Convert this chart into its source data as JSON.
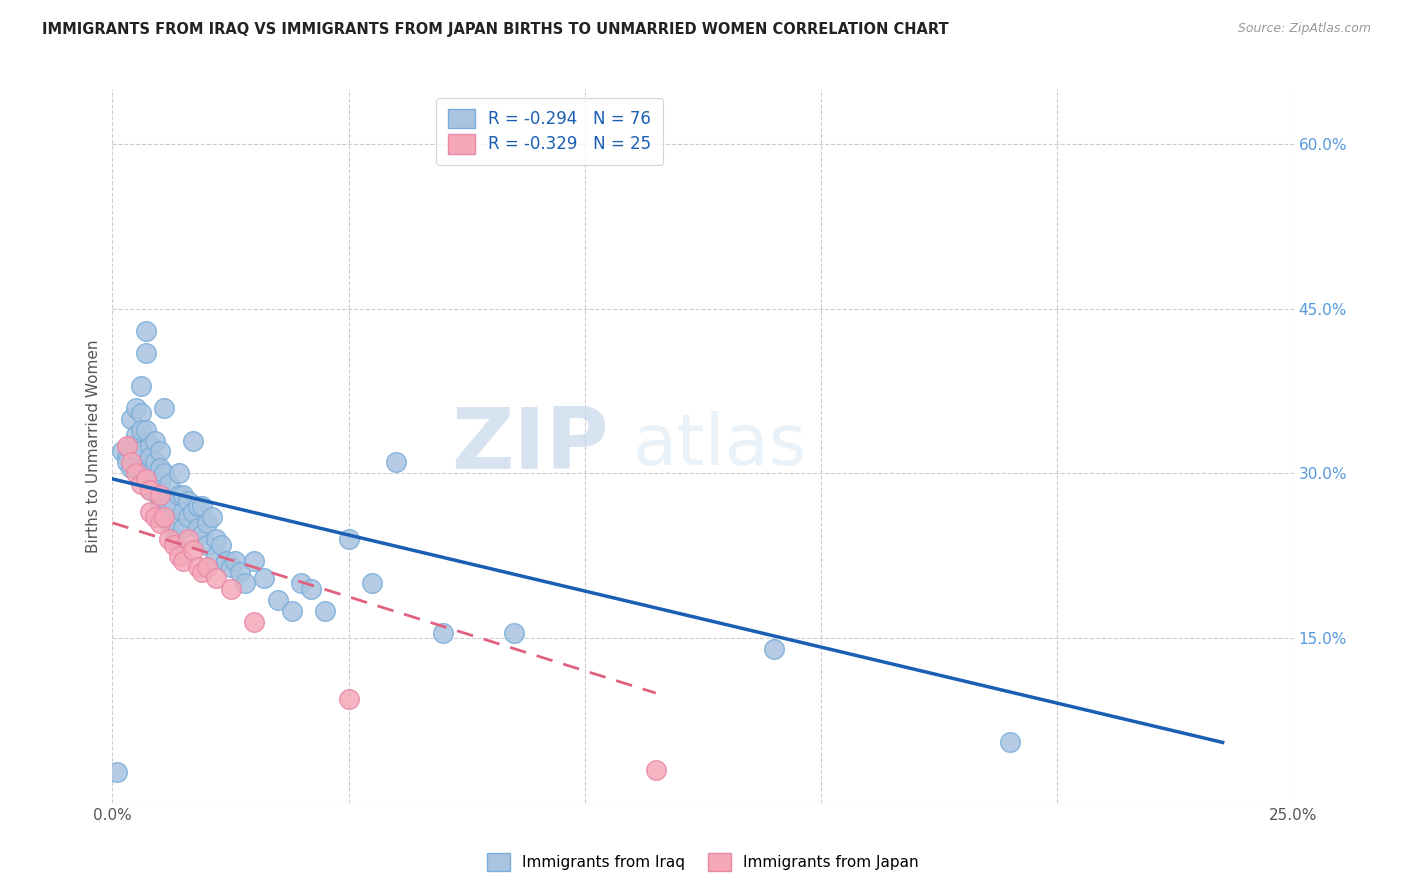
{
  "title": "IMMIGRANTS FROM IRAQ VS IMMIGRANTS FROM JAPAN BIRTHS TO UNMARRIED WOMEN CORRELATION CHART",
  "source": "Source: ZipAtlas.com",
  "ylabel": "Births to Unmarried Women",
  "xlim": [
    0.0,
    0.25
  ],
  "ylim": [
    0.0,
    0.65
  ],
  "x_ticks": [
    0.0,
    0.05,
    0.1,
    0.15,
    0.2,
    0.25
  ],
  "x_tick_labels": [
    "0.0%",
    "",
    "",
    "",
    "",
    "25.0%"
  ],
  "y_ticks_right": [
    0.0,
    0.15,
    0.3,
    0.45,
    0.6
  ],
  "y_tick_labels_right": [
    "",
    "15.0%",
    "30.0%",
    "45.0%",
    "60.0%"
  ],
  "legend_iraq": "R = -0.294   N = 76",
  "legend_japan": "R = -0.329   N = 25",
  "legend_label_iraq": "Immigrants from Iraq",
  "legend_label_japan": "Immigrants from Japan",
  "iraq_color": "#a8c4e0",
  "japan_color": "#f4a8b8",
  "iraq_line_color": "#1a5fb4",
  "japan_line_color": "#e06080",
  "background_color": "#ffffff",
  "grid_color": "#cccccc",
  "watermark_zip": "ZIP",
  "watermark_atlas": "atlas",
  "iraq_line_x0": 0.0,
  "iraq_line_y0": 0.295,
  "iraq_line_x1": 0.235,
  "iraq_line_y1": 0.055,
  "japan_line_x0": 0.0,
  "japan_line_y0": 0.255,
  "japan_line_x1": 0.115,
  "japan_line_y1": 0.1,
  "iraq_x": [
    0.001,
    0.002,
    0.003,
    0.003,
    0.004,
    0.004,
    0.004,
    0.005,
    0.005,
    0.005,
    0.005,
    0.006,
    0.006,
    0.006,
    0.006,
    0.007,
    0.007,
    0.007,
    0.008,
    0.008,
    0.008,
    0.008,
    0.009,
    0.009,
    0.009,
    0.01,
    0.01,
    0.01,
    0.01,
    0.011,
    0.011,
    0.011,
    0.012,
    0.012,
    0.012,
    0.013,
    0.013,
    0.013,
    0.014,
    0.014,
    0.015,
    0.015,
    0.015,
    0.016,
    0.016,
    0.017,
    0.017,
    0.018,
    0.018,
    0.019,
    0.019,
    0.02,
    0.02,
    0.021,
    0.022,
    0.022,
    0.023,
    0.024,
    0.025,
    0.026,
    0.027,
    0.028,
    0.03,
    0.032,
    0.035,
    0.038,
    0.04,
    0.042,
    0.045,
    0.05,
    0.055,
    0.06,
    0.07,
    0.085,
    0.14,
    0.19
  ],
  "iraq_y": [
    0.028,
    0.32,
    0.315,
    0.31,
    0.35,
    0.325,
    0.305,
    0.36,
    0.335,
    0.32,
    0.305,
    0.38,
    0.355,
    0.34,
    0.32,
    0.43,
    0.41,
    0.34,
    0.325,
    0.315,
    0.3,
    0.285,
    0.33,
    0.31,
    0.285,
    0.32,
    0.305,
    0.29,
    0.275,
    0.36,
    0.3,
    0.275,
    0.29,
    0.27,
    0.255,
    0.27,
    0.255,
    0.24,
    0.3,
    0.28,
    0.28,
    0.265,
    0.25,
    0.275,
    0.26,
    0.33,
    0.265,
    0.27,
    0.25,
    0.27,
    0.245,
    0.255,
    0.235,
    0.26,
    0.24,
    0.225,
    0.235,
    0.22,
    0.215,
    0.22,
    0.21,
    0.2,
    0.22,
    0.205,
    0.185,
    0.175,
    0.2,
    0.195,
    0.175,
    0.24,
    0.2,
    0.31,
    0.155,
    0.155,
    0.14,
    0.055
  ],
  "japan_x": [
    0.003,
    0.004,
    0.005,
    0.006,
    0.007,
    0.008,
    0.008,
    0.009,
    0.01,
    0.01,
    0.011,
    0.012,
    0.013,
    0.014,
    0.015,
    0.016,
    0.017,
    0.018,
    0.019,
    0.02,
    0.022,
    0.025,
    0.03,
    0.05,
    0.115
  ],
  "japan_y": [
    0.325,
    0.31,
    0.3,
    0.29,
    0.295,
    0.285,
    0.265,
    0.26,
    0.28,
    0.255,
    0.26,
    0.24,
    0.235,
    0.225,
    0.22,
    0.24,
    0.23,
    0.215,
    0.21,
    0.215,
    0.205,
    0.195,
    0.165,
    0.095,
    0.03
  ]
}
